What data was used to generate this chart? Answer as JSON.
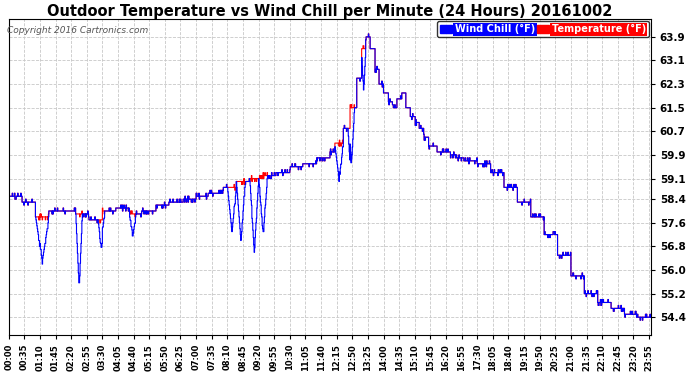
{
  "title": "Outdoor Temperature vs Wind Chill per Minute (24 Hours) 20161002",
  "copyright": "Copyright 2016 Cartronics.com",
  "yticks": [
    54.4,
    55.2,
    56.0,
    56.8,
    57.6,
    58.4,
    59.1,
    59.9,
    60.7,
    61.5,
    62.3,
    63.1,
    63.9
  ],
  "ylim": [
    53.8,
    64.5
  ],
  "temp_color": "#ff0000",
  "wind_color": "#0000ff",
  "background_color": "#ffffff",
  "grid_color": "#c8c8c8",
  "legend_wind_label": "Wind Chill (°F)",
  "legend_temp_label": "Temperature (°F)",
  "legend_wind_bg": "#0000ff",
  "legend_temp_bg": "#ff0000"
}
